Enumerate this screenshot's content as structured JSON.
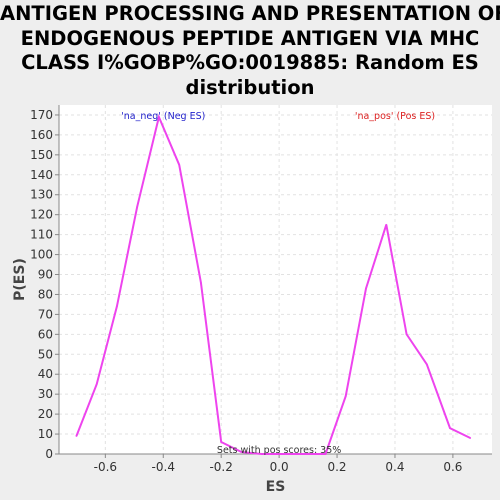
{
  "chart_data": {
    "type": "line",
    "title_lines": [
      "ANTIGEN PROCESSING AND PRESENTATION OF",
      "ENDOGENOUS PEPTIDE ANTIGEN VIA MHC",
      "CLASS I%GOBP%GO:0019885: Random ES",
      "distribution"
    ],
    "xlabel": "ES",
    "ylabel": "P(ES)",
    "xlim": [
      -0.76,
      0.735
    ],
    "ylim": [
      0,
      175
    ],
    "xticks": [
      -0.6,
      -0.4,
      -0.2,
      0.0,
      0.2,
      0.4,
      0.6
    ],
    "xtick_labels": [
      "-0.6",
      "-0.4",
      "-0.2",
      "0.0",
      "0.2",
      "0.4",
      "0.6"
    ],
    "yticks": [
      0,
      10,
      20,
      30,
      40,
      50,
      60,
      70,
      80,
      90,
      100,
      110,
      120,
      130,
      140,
      150,
      160,
      170
    ],
    "grid": true,
    "line_color": "#ee44ee",
    "series": [
      {
        "values": [
          [
            -0.7,
            9
          ],
          [
            -0.63,
            35
          ],
          [
            -0.56,
            74
          ],
          [
            -0.49,
            124
          ],
          [
            -0.415,
            169
          ],
          [
            -0.345,
            145
          ],
          [
            -0.27,
            86
          ],
          [
            -0.2,
            6
          ],
          [
            -0.13,
            1
          ],
          [
            -0.06,
            0
          ],
          [
            0.16,
            0
          ],
          [
            0.23,
            29
          ],
          [
            0.3,
            83
          ],
          [
            0.37,
            115
          ],
          [
            0.44,
            60
          ],
          [
            0.51,
            45
          ],
          [
            0.59,
            13
          ],
          [
            0.66,
            8
          ]
        ]
      }
    ],
    "annotations": {
      "neg_label": "'na_neg' (Neg ES)",
      "pos_label": "'na_pos' (Pos ES)",
      "neg_color": "#2222cc",
      "pos_color": "#dd2222",
      "sets_text": "Sets with pos scores: 35%"
    }
  }
}
